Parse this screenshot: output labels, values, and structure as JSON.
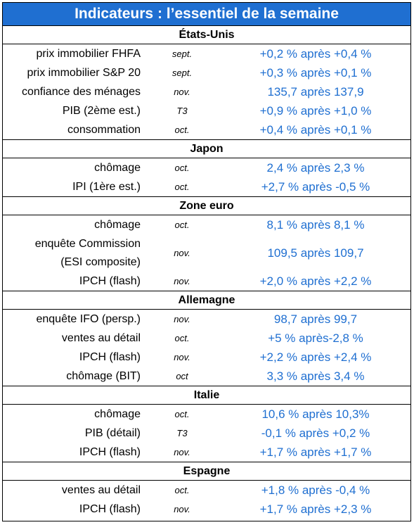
{
  "title": "Indicateurs : l’essentiel de la semaine",
  "sections": [
    {
      "name": "États-Unis",
      "rows": [
        {
          "label": "prix immobilier FHFA",
          "period": "sept.",
          "value": "+0,2 % après +0,4 %"
        },
        {
          "label": "prix immobilier S&P 20",
          "period": "sept.",
          "value": "+0,3 % après +0,1 %"
        },
        {
          "label": "confiance des ménages",
          "period": "nov.",
          "value": "135,7 après 137,9"
        },
        {
          "label": "PIB (2ème est.)",
          "period": "T3",
          "value": "+0,9 % après +1,0 %"
        },
        {
          "label": "consommation",
          "period": "oct.",
          "value": "+0,4 % après +0,1 %"
        }
      ]
    },
    {
      "name": "Japon",
      "rows": [
        {
          "label": "chômage",
          "period": "oct.",
          "value": "2,4 % après 2,3 %"
        },
        {
          "label": "IPI (1ère est.)",
          "period": "oct.",
          "value": "+2,7 % après -0,5 %"
        }
      ]
    },
    {
      "name": "Zone euro",
      "rows": [
        {
          "label": "chômage",
          "period": "oct.",
          "value": "8,1 % après 8,1 %"
        },
        {
          "label": "enquête Commission",
          "label2": "(ESI composite)",
          "period": "nov.",
          "value": "109,5 après 109,7"
        },
        {
          "label": "IPCH (flash)",
          "period": "nov.",
          "value": "+2,0 % après +2,2 %"
        }
      ]
    },
    {
      "name": "Allemagne",
      "rows": [
        {
          "label": "enquête IFO (persp.)",
          "period": "nov.",
          "value": "98,7 après 99,7"
        },
        {
          "label": "ventes au détail",
          "period": "oct.",
          "value": "+5 % après-2,8 %"
        },
        {
          "label": "IPCH (flash)",
          "period": "nov.",
          "value": "+2,2 % après +2,4 %"
        },
        {
          "label": "chômage (BIT)",
          "period": "oct",
          "value": "3,3 % après 3,4 %"
        }
      ]
    },
    {
      "name": "Italie",
      "rows": [
        {
          "label": "chômage",
          "period": "oct.",
          "value": "10,6 % après 10,3%"
        },
        {
          "label": "PIB (détail)",
          "period": "T3",
          "value": "-0,1 % après +0,2 %"
        },
        {
          "label": "IPCH (flash)",
          "period": "nov.",
          "value": "+1,7 % après +1,7 %"
        }
      ]
    },
    {
      "name": "Espagne",
      "rows": [
        {
          "label": "ventes au détail",
          "period": "oct.",
          "value": "+1,8 % après -0,4 %"
        },
        {
          "label": "IPCH (flash)",
          "period": "nov.",
          "value": "+1,7 % après +2,3 %"
        }
      ]
    }
  ],
  "colors": {
    "accent": "#1f6fd1",
    "title_text": "#ffffff",
    "border": "#000000"
  }
}
